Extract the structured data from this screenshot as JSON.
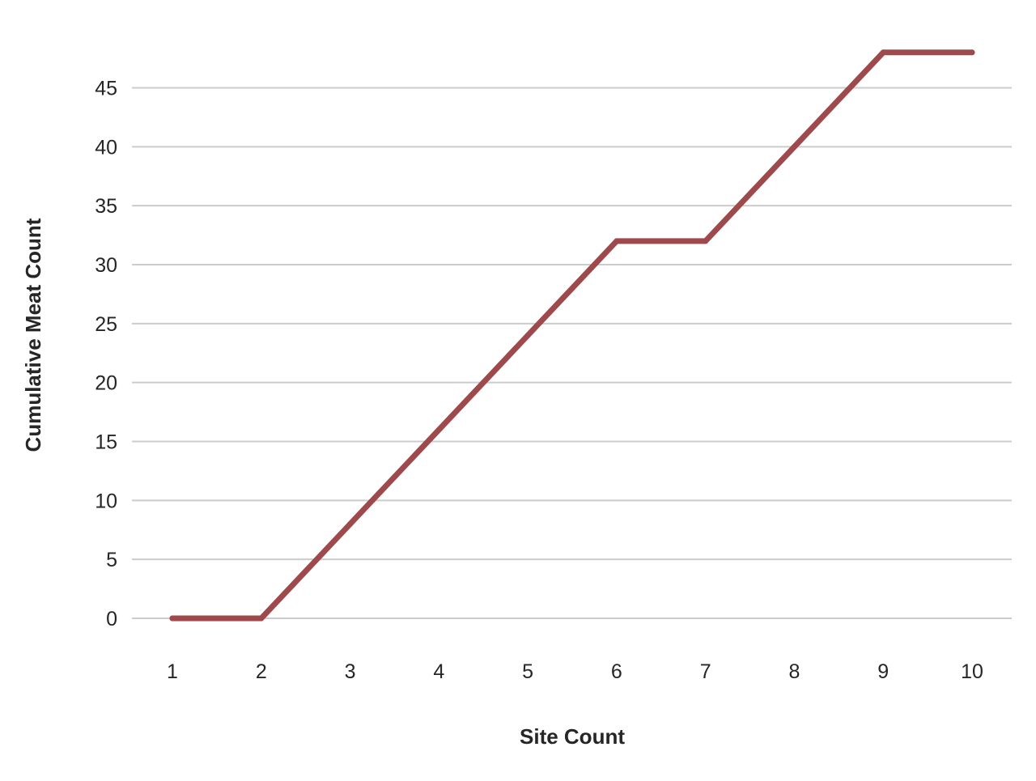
{
  "chart_data": {
    "type": "line",
    "title": "",
    "xlabel": "Site Count",
    "ylabel": "Cumulative Meat Count",
    "x": [
      1,
      2,
      3,
      4,
      5,
      6,
      7,
      8,
      9,
      10
    ],
    "x_tick_labels": [
      "1",
      "2",
      "3",
      "4",
      "5",
      "6",
      "7",
      "8",
      "9",
      "10"
    ],
    "y_ticks": [
      0,
      5,
      10,
      15,
      20,
      25,
      30,
      35,
      40,
      45
    ],
    "ylim": [
      -3.5,
      50
    ],
    "grid": "horizontal",
    "legend": "none",
    "series": [
      {
        "values": [
          0,
          0,
          8,
          16,
          24,
          32,
          32,
          40,
          48,
          48
        ],
        "color": "#9e4a4d"
      }
    ]
  }
}
